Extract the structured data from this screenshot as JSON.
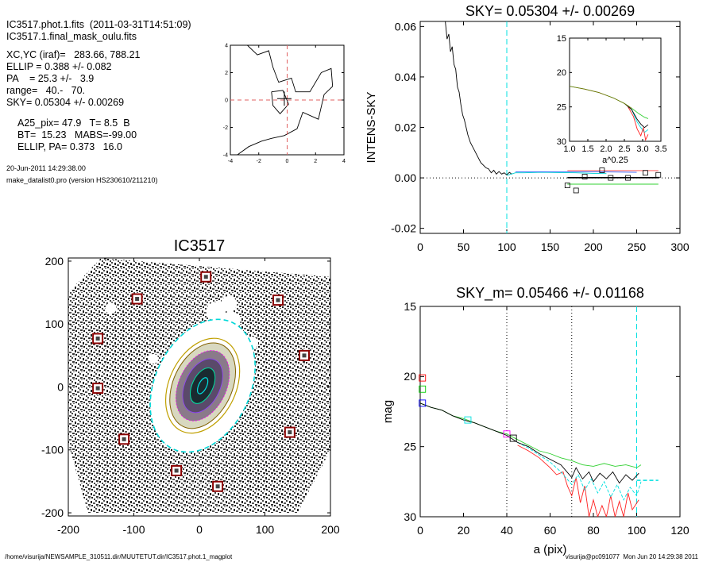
{
  "info": {
    "file": "IC3517.phot.1.fits  (2011-03-31T14:51:09)",
    "mask": "IC3517.1.final_mask_oulu.fits",
    "xcyc": "XC,YC (iraf)=   283.66, 788.21",
    "ellip": "ELLIP = 0.388 +/- 0.082",
    "pa": "PA    = 25.3 +/-   3.9",
    "range": "range=   40.-   70.",
    "sky": "SKY= 0.05304 +/- 0.00269",
    "a25": "A25_pix= 47.9   T= 8.5  B",
    "bt": "BT=  15.23   MABS=-99.00",
    "ellip_pa": "ELLIP, PA= 0.373   16.0",
    "date": "20-Jun-2011 14:29:38.00",
    "program": "make_datalist0.pro (version HS230610/211210)"
  },
  "footer": {
    "path": "/home/visurija/NEWSAMPLE_310511.dir/MUUTETUT.dir/IC3517.phot.1_magplot",
    "user": "visurija@pc091077  Mon Jun 20 14:29:38 2011"
  },
  "chart_data": [
    {
      "id": "contour-inset",
      "type": "line",
      "xlim": [
        -4,
        4
      ],
      "ylim": [
        -4,
        4
      ],
      "xticks": [
        "-4",
        "-2",
        "0",
        "2",
        "4"
      ],
      "yticks": [
        "-4",
        "-2",
        "0",
        "2",
        "4"
      ],
      "center": [
        -0.2,
        0.1
      ],
      "contour": [
        [
          -2.8,
          4
        ],
        [
          -2.1,
          3.3
        ],
        [
          -1.3,
          3.6
        ],
        [
          -1.0,
          2.4
        ],
        [
          -0.6,
          1.3
        ],
        [
          0.3,
          1.6
        ],
        [
          0.6,
          0.6
        ],
        [
          1.6,
          0.6
        ],
        [
          2.4,
          2.0
        ],
        [
          3.1,
          2.3
        ],
        [
          3.2,
          1.0
        ],
        [
          2.6,
          0.4
        ],
        [
          2.2,
          -1.4
        ],
        [
          1.1,
          -0.9
        ],
        [
          0.7,
          -2.1
        ],
        [
          -0.2,
          -2.6
        ],
        [
          -1.1,
          -2.8
        ],
        [
          -1.8,
          -3.0
        ],
        [
          -2.7,
          -3.4
        ],
        [
          -3.5,
          -4
        ]
      ],
      "contour2": [
        [
          -1.1,
          0.6
        ],
        [
          -0.3,
          0.7
        ],
        [
          0.1,
          -0.3
        ],
        [
          -0.5,
          -1.0
        ],
        [
          -1.0,
          -0.4
        ],
        [
          -1.1,
          0.6
        ]
      ]
    },
    {
      "id": "sky-profile",
      "type": "line",
      "title": "SKY= 0.05304 +/- 0.00269",
      "ylabel": "INTENS-SKY",
      "xlim": [
        0,
        300
      ],
      "ylim": [
        -0.022,
        0.062
      ],
      "xticks": [
        "0",
        "50",
        "100",
        "150",
        "200",
        "250",
        "300"
      ],
      "yticks": [
        "-0.02",
        "0.00",
        "0.02",
        "0.04",
        "0.06"
      ],
      "vline_cyan": 100,
      "profile": [
        [
          29,
          0.062
        ],
        [
          31,
          0.055
        ],
        [
          33,
          0.057
        ],
        [
          35,
          0.05
        ],
        [
          37,
          0.052
        ],
        [
          39,
          0.045
        ],
        [
          41,
          0.043
        ],
        [
          43,
          0.036
        ],
        [
          45,
          0.034
        ],
        [
          47,
          0.029
        ],
        [
          49,
          0.025
        ],
        [
          51,
          0.023
        ],
        [
          53,
          0.02
        ],
        [
          55,
          0.017
        ],
        [
          58,
          0.014
        ],
        [
          61,
          0.012
        ],
        [
          64,
          0.01
        ],
        [
          67,
          0.008
        ],
        [
          70,
          0.006
        ],
        [
          73,
          0.005
        ],
        [
          76,
          0.004
        ],
        [
          79,
          0.0035
        ],
        [
          82,
          0.002
        ],
        [
          85,
          0.003
        ],
        [
          88,
          0.0015
        ],
        [
          91,
          0.0025
        ],
        [
          94,
          0.0015
        ],
        [
          97,
          0.002
        ],
        [
          100,
          0.0012
        ],
        [
          103,
          0.0022
        ],
        [
          106,
          0.0014
        ]
      ],
      "cyan_line": [
        [
          100,
          0.001
        ],
        [
          110,
          0.002
        ],
        [
          120,
          0.002
        ],
        [
          140,
          0.0022
        ],
        [
          160,
          0.0021
        ],
        [
          180,
          0.002
        ],
        [
          200,
          0.0018
        ],
        [
          215,
          0.0017
        ]
      ],
      "blue_line": [
        [
          110,
          0.0024
        ],
        [
          150,
          0.0024
        ],
        [
          200,
          0.0024
        ],
        [
          250,
          0.0022
        ]
      ],
      "red_line": [
        [
          170,
          0.0029
        ],
        [
          275,
          0.0029
        ]
      ],
      "green_line": [
        [
          170,
          -0.0025
        ],
        [
          275,
          -0.0025
        ]
      ],
      "black_line": [
        [
          170,
          0.0001
        ],
        [
          275,
          0.0001
        ]
      ],
      "squares": [
        [
          170,
          -0.003
        ],
        [
          180,
          -0.005
        ],
        [
          190,
          0.0005
        ],
        [
          210,
          0.003
        ],
        [
          220,
          0.0
        ],
        [
          240,
          0.0
        ],
        [
          260,
          0.002
        ],
        [
          275,
          0.0012
        ]
      ]
    },
    {
      "id": "sky-inset",
      "type": "line",
      "xlabel": "a^0.25",
      "xlim": [
        1.0,
        3.5
      ],
      "ylim": [
        30,
        15
      ],
      "xticks": [
        "1.0",
        "1.5",
        "2.0",
        "2.5",
        "3.0",
        "3.5"
      ],
      "yticks": [
        "15",
        "20",
        "25",
        "30"
      ],
      "green": [
        [
          1.0,
          22.0
        ],
        [
          1.4,
          22.4
        ],
        [
          1.8,
          22.9
        ],
        [
          2.2,
          23.7
        ],
        [
          2.5,
          24.5
        ],
        [
          2.7,
          25.2
        ],
        [
          2.9,
          26.0
        ],
        [
          3.05,
          26.5
        ],
        [
          3.15,
          26.7
        ]
      ],
      "black": [
        [
          2.5,
          24.5
        ],
        [
          2.7,
          25.4
        ],
        [
          2.85,
          26.8
        ],
        [
          2.95,
          27.5
        ],
        [
          3.05,
          28.0
        ],
        [
          3.15,
          27.6
        ]
      ],
      "red": [
        [
          2.6,
          25.0
        ],
        [
          2.75,
          26.4
        ],
        [
          2.85,
          28.2
        ],
        [
          2.95,
          29.2
        ],
        [
          3.02,
          28.0
        ],
        [
          3.08,
          29.8
        ],
        [
          3.15,
          29.0
        ]
      ],
      "cyan": [
        [
          2.7,
          25.4
        ],
        [
          2.85,
          27.2
        ],
        [
          2.95,
          28.0
        ],
        [
          3.05,
          28.7
        ],
        [
          3.15,
          28.3
        ]
      ]
    },
    {
      "id": "galaxy-image",
      "type": "scatter",
      "title": "IC3517",
      "xlim": [
        -200,
        200
      ],
      "ylim": [
        -205,
        205
      ],
      "xticks": [
        "-200",
        "-100",
        "0",
        "100",
        "200"
      ],
      "yticks": [
        "-200",
        "-100",
        "0",
        "100",
        "200"
      ],
      "sources": [
        [
          10,
          175
        ],
        [
          -95,
          140
        ],
        [
          120,
          138
        ],
        [
          -155,
          77
        ],
        [
          160,
          50
        ],
        [
          -155,
          -2
        ],
        [
          138,
          -72
        ],
        [
          -115,
          -83
        ],
        [
          -35,
          -133
        ],
        [
          28,
          -158
        ]
      ],
      "ellipse_pa": 25.3,
      "ellipse_ellip": 0.388
    },
    {
      "id": "mag-profile",
      "type": "line",
      "title": "SKY_m=  0.05466 +/- 0.01168",
      "xlabel": "a (pix)",
      "ylabel": "mag",
      "xlim": [
        0,
        120
      ],
      "ylim": [
        30,
        15
      ],
      "xticks": [
        "0",
        "20",
        "40",
        "60",
        "80",
        "100",
        "120"
      ],
      "yticks": [
        "15",
        "20",
        "25",
        "30"
      ],
      "vlines_dotted": [
        40,
        70
      ],
      "vline_cyan": 100,
      "green": [
        [
          0,
          21.9
        ],
        [
          5,
          22.2
        ],
        [
          10,
          22.4
        ],
        [
          15,
          22.8
        ],
        [
          20,
          23.0
        ],
        [
          25,
          23.3
        ],
        [
          30,
          23.6
        ],
        [
          35,
          23.9
        ],
        [
          40,
          24.1
        ],
        [
          45,
          24.5
        ],
        [
          50,
          24.9
        ],
        [
          55,
          25.3
        ],
        [
          60,
          25.5
        ],
        [
          65,
          25.8
        ],
        [
          70,
          26.0
        ],
        [
          75,
          26.3
        ],
        [
          80,
          26.4
        ],
        [
          85,
          26.2
        ],
        [
          90,
          26.4
        ],
        [
          95,
          26.3
        ],
        [
          100,
          26.5
        ],
        [
          102,
          26.3
        ]
      ],
      "black": [
        [
          0,
          21.9
        ],
        [
          5,
          22.2
        ],
        [
          10,
          22.4
        ],
        [
          15,
          22.8
        ],
        [
          20,
          23.1
        ],
        [
          25,
          23.3
        ],
        [
          30,
          23.6
        ],
        [
          35,
          23.9
        ],
        [
          40,
          24.2
        ],
        [
          45,
          24.7
        ],
        [
          50,
          25.0
        ],
        [
          55,
          25.5
        ],
        [
          60,
          25.9
        ],
        [
          65,
          26.3
        ],
        [
          70,
          27.2
        ],
        [
          72,
          26.5
        ],
        [
          75,
          27.3
        ],
        [
          78,
          26.8
        ],
        [
          80,
          27.5
        ],
        [
          83,
          26.9
        ],
        [
          86,
          27.3
        ],
        [
          89,
          26.8
        ],
        [
          92,
          27.6
        ],
        [
          95,
          27.0
        ],
        [
          98,
          27.4
        ],
        [
          101,
          26.9
        ]
      ],
      "cyan": [
        [
          45,
          24.7
        ],
        [
          50,
          25.1
        ],
        [
          55,
          25.6
        ],
        [
          60,
          26.1
        ],
        [
          65,
          26.8
        ],
        [
          70,
          27.7
        ],
        [
          73,
          27.0
        ],
        [
          76,
          28.1
        ],
        [
          79,
          27.3
        ],
        [
          82,
          28.3
        ],
        [
          85,
          27.5
        ],
        [
          88,
          28.6
        ],
        [
          91,
          27.7
        ],
        [
          94,
          28.8
        ],
        [
          97,
          27.9
        ],
        [
          100,
          28.5
        ],
        [
          102,
          27.5
        ]
      ],
      "red": [
        [
          45,
          24.9
        ],
        [
          50,
          25.3
        ],
        [
          55,
          25.8
        ],
        [
          60,
          26.5
        ],
        [
          63,
          27.0
        ],
        [
          66,
          26.8
        ],
        [
          68,
          27.8
        ],
        [
          70,
          28.5
        ],
        [
          72,
          27.2
        ],
        [
          74,
          29.0
        ],
        [
          76,
          27.8
        ],
        [
          78,
          30
        ],
        [
          80,
          28.8
        ],
        [
          82,
          30
        ],
        [
          84,
          29.2
        ],
        [
          86,
          30
        ],
        [
          88,
          28.5
        ],
        [
          90,
          30
        ],
        [
          92,
          28.9
        ],
        [
          94,
          30
        ],
        [
          96,
          28.3
        ],
        [
          98,
          29.5
        ],
        [
          101,
          28.8
        ]
      ],
      "cyan_dash": [
        [
          100,
          27.4
        ],
        [
          110,
          27.4
        ]
      ],
      "squares": [
        [
          1,
          20.1,
          "#ff0000"
        ],
        [
          1,
          20.9,
          "#00cc00"
        ],
        [
          1,
          21.9,
          "#0000ff"
        ],
        [
          22,
          23.1,
          "#00e0e0"
        ],
        [
          40,
          24.1,
          "#ff00ff"
        ],
        [
          43,
          24.4,
          "#000000"
        ]
      ]
    }
  ]
}
